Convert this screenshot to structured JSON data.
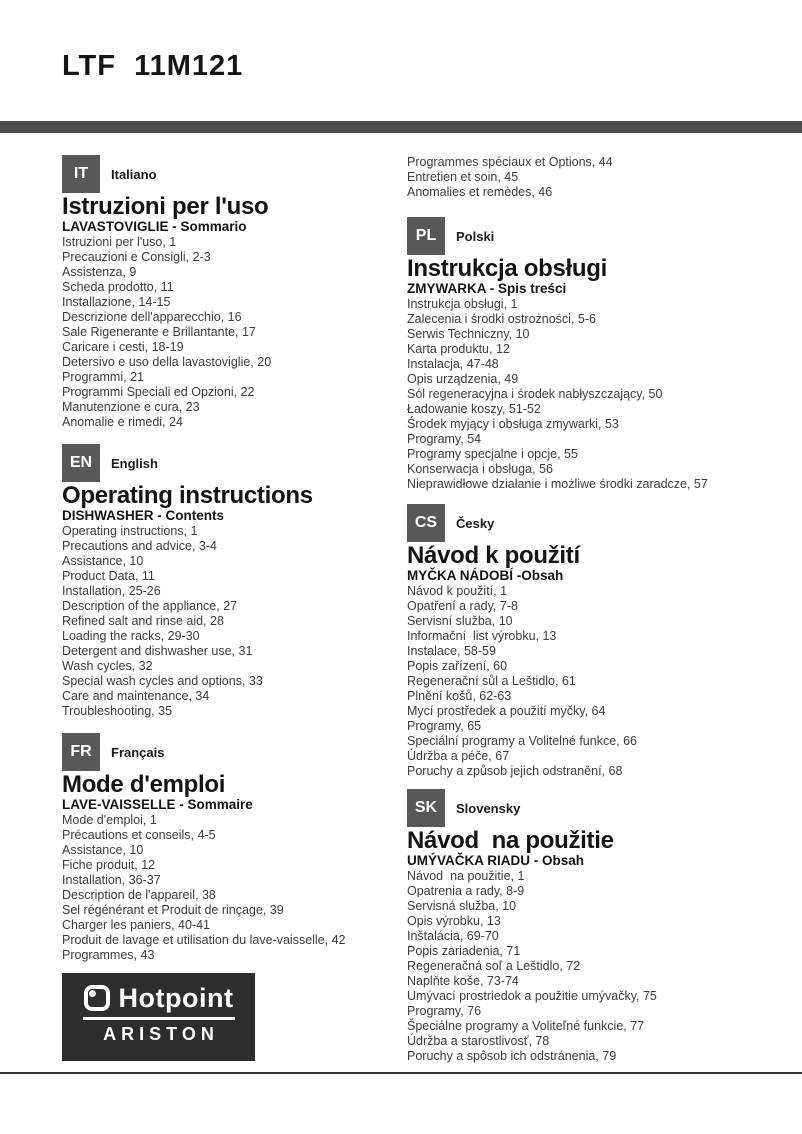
{
  "page": {
    "title": "LTF  11M121"
  },
  "sections": {
    "it": {
      "badge": "IT",
      "language": "Italiano",
      "heading": "Istruzioni per l'uso",
      "subheading": "LAVASTOVIGLIE - Sommario",
      "items": [
        "Istruzioni per l'uso, 1",
        "Precauzioni e Consigli, 2-3",
        "Assistenza, 9",
        "Scheda prodotto, 11",
        "Installazione, 14-15",
        "Descrizione dell'apparecchio, 16",
        "Sale Rigenerante e Brillantante, 17",
        "Caricare i cesti, 18-19",
        "Detersivo e uso della lavastoviglie, 20",
        "Programmi, 21",
        "Programmi Speciali ed Opzioni, 22",
        "Manutenzione e cura, 23",
        "Anomalie e rimedi, 24"
      ]
    },
    "en": {
      "badge": "EN",
      "language": "English",
      "heading": "Operating instructions",
      "subheading": "DISHWASHER - Contents",
      "items": [
        "Operating instructions, 1",
        "Precautions and advice, 3-4",
        "Assistance, 10",
        "Product Data, 11",
        "Installation, 25-26",
        "Description of the appliance, 27",
        "Refined salt and rinse aid, 28",
        "Loading the racks, 29-30",
        "Detergent and dishwasher use, 31",
        "Wash cycles, 32",
        "Special wash cycles and options, 33",
        "Care and maintenance, 34",
        "Troubleshooting, 35"
      ]
    },
    "fr": {
      "badge": "FR",
      "language": "Français",
      "heading": "Mode d'emploi",
      "subheading": "LAVE-VAISSELLE - Sommaire",
      "items": [
        "Mode d'emploi, 1",
        "Précautions et conseils, 4-5",
        "Assistance, 10",
        "Fiche produit, 12",
        "Installation, 36-37",
        "Description de l'appareil, 38",
        "Sel régénérant et Produit de rinçage, 39",
        "Charger les paniers, 40-41",
        "Produit de lavage et utilisation du lave-vaisselle, 42",
        "Programmes, 43"
      ]
    },
    "pl": {
      "badge": "PL",
      "language": "Polski",
      "heading": "Instrukcja obsługi",
      "subheading": "ZMYWARKA - Spis treści",
      "items": [
        "Instrukcja obsługi, 1",
        "Zalecenia i środki ostrożności, 5-6",
        "Serwis Techniczny, 10",
        "Karta produktu, 12",
        "Instalacja, 47-48",
        "Opis urządzenia, 49",
        "Sól regeneracyjna i środek nabłyszczający, 50",
        "Ładowanie koszy, 51-52",
        "Środek myjący i obsługa zmywarki, 53",
        "Programy, 54",
        "Programy specjalne i opcje, 55",
        "Konserwacja i obsługa, 56",
        "Nieprawidłowe działanie i możliwe środki zaradcze, 57"
      ]
    },
    "cs": {
      "badge": "CS",
      "language": "Česky",
      "heading": "Návod k použití",
      "subheading": "MYČKA NÁDOBÍ -Obsah",
      "items": [
        "Návod k použití, 1",
        "Opatření a rady, 7-8",
        "Servisní služba, 10",
        "Informační  list výrobku, 13",
        "Instalace, 58-59",
        "Popis zařízení, 60",
        "Regenerační sůl a Leštidlo, 61",
        "Plnění košů, 62-63",
        "Mycí prostředek a použití myčky, 64",
        "Programy, 65",
        "Speciální programy a Volitelné funkce, 66",
        "Údržba a péče, 67",
        "Poruchy a způsob jejich odstranění, 68"
      ]
    },
    "sk": {
      "badge": "SK",
      "language": "Slovensky",
      "heading": "Návod  na použitie",
      "subheading": "UMÝVAČKA RIADU - Obsah",
      "items": [
        "Návod  na použitie, 1",
        "Opatrenia a rady, 8-9",
        "Servisná služba, 10",
        "Opis výrobku, 13",
        "Inštalácia, 69-70",
        "Popis zariadenia, 71",
        "Regeneračná soľ a Leštidlo, 72",
        "Naplňte koše, 73-74",
        "Umývací prostriedok a použitie umývačky, 75",
        "Programy, 76",
        "Špeciálne programy a Voliteľné funkcie, 77",
        "Údržba a starostlivosť, 78",
        "Poruchy a spôsob ich odstránenia, 79"
      ]
    }
  },
  "french_continuation": {
    "items": [
      "Programmes spéciaux et Options, 44",
      "Entretien et soin, 45",
      "Anomalies et remèdes, 46"
    ]
  },
  "logo": {
    "brand": "Hotpoint",
    "sub_brand": "ARISTON"
  },
  "colors": {
    "top_bar": "#4b4b4d",
    "badge": "#58585a",
    "logo_box": "#2d2d2e",
    "text": "#1a1a1a"
  }
}
